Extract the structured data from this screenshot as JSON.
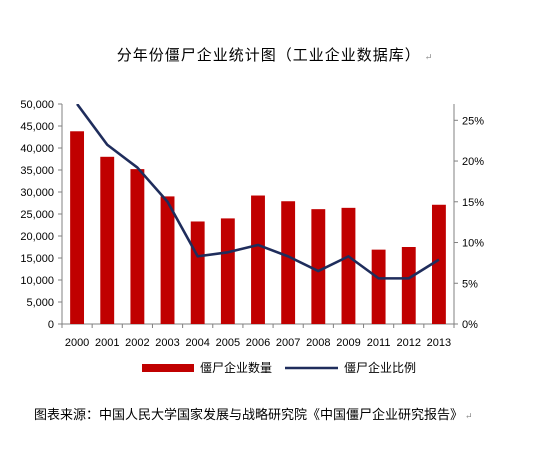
{
  "chart_data": {
    "type": "bar",
    "title": "分年份僵尸企业统计图（工业企业数据库）",
    "categories": [
      "2000",
      "2001",
      "2002",
      "2003",
      "2004",
      "2005",
      "2006",
      "2007",
      "2008",
      "2009",
      "2011",
      "2012",
      "2013"
    ],
    "series": [
      {
        "name": "僵尸企业数量",
        "type": "bar",
        "axis": "left",
        "color": "#c00000",
        "values": [
          43800,
          38000,
          35200,
          29000,
          23300,
          24000,
          29200,
          27900,
          26100,
          26400,
          16900,
          17500,
          27100
        ]
      },
      {
        "name": "僵尸企业比例",
        "type": "line",
        "axis": "right",
        "color": "#1f2d5c",
        "values": [
          27.0,
          22.0,
          19.2,
          15.0,
          8.3,
          8.8,
          9.7,
          8.3,
          6.5,
          8.3,
          5.6,
          5.6,
          7.9
        ]
      }
    ],
    "y_left": {
      "min": 0,
      "max": 50000,
      "step": 5000,
      "labels": [
        "0",
        "5,000",
        "10,000",
        "15,000",
        "20,000",
        "25,000",
        "30,000",
        "35,000",
        "40,000",
        "45,000",
        "50,000"
      ]
    },
    "y_right": {
      "min": 0,
      "max": 27,
      "labels": [
        "0%",
        "5%",
        "10%",
        "15%",
        "20%",
        "25%"
      ]
    },
    "legend_position": "bottom",
    "grid": false
  },
  "caption": "图表来源：中国人民大学国家发展与战略研究院《中国僵尸企业研究报告》",
  "marks": {
    "title_end": "↵",
    "caption_end": "↵"
  }
}
